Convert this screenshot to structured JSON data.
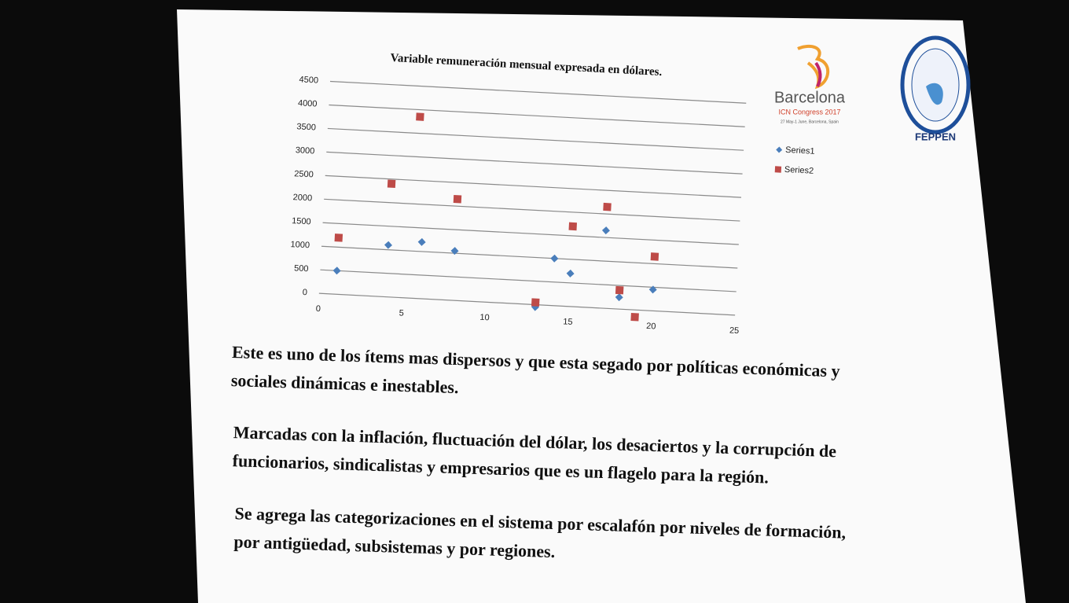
{
  "chart_data": {
    "type": "scatter",
    "title": "Variable remuneración mensual expresada en dólares.",
    "xlim": [
      0,
      25
    ],
    "xticks": [
      0,
      5,
      10,
      15,
      20,
      25
    ],
    "ylim": [
      0,
      4500
    ],
    "yticks": [
      0,
      500,
      1000,
      1500,
      2000,
      2500,
      3000,
      3500,
      4000,
      4500
    ],
    "grid": true,
    "legend": "right",
    "series": [
      {
        "name": "Series1",
        "color": "#4a7ebb",
        "marker": "diamond",
        "x": [
          1,
          4,
          6,
          8,
          13,
          14,
          15,
          17,
          18,
          20
        ],
        "values": [
          500,
          1100,
          1200,
          1050,
          -50,
          1000,
          700,
          1650,
          250,
          450
        ]
      },
      {
        "name": "Series2",
        "color": "#be4b48",
        "marker": "square",
        "x": [
          1,
          4,
          5.5,
          8,
          13,
          15,
          17,
          18,
          19,
          20
        ],
        "values": [
          1200,
          2400,
          3850,
          2150,
          50,
          1700,
          2150,
          400,
          -150,
          1150
        ]
      }
    ]
  },
  "logos": {
    "barcelona": "Barcelona",
    "congress": "ICN Congress 2017",
    "dates": "27 May-1 June, Barcelona, Spain",
    "federation": "FEPPEN"
  },
  "paragraphs": [
    [
      "Este es uno de los ítems mas dispersos y que esta segado por  políticas económicas y",
      "sociales dinámicas e inestables."
    ],
    [
      "Marcadas con la inflación, fluctuación del dólar, los desaciertos y la corrupción de",
      "funcionarios, sindicalistas y empresarios que es un flagelo para la región."
    ],
    [
      "Se agrega las categorizaciones en el sistema por escalafón por niveles de formación,",
      "por antigüedad, subsistemas y por regiones."
    ]
  ]
}
